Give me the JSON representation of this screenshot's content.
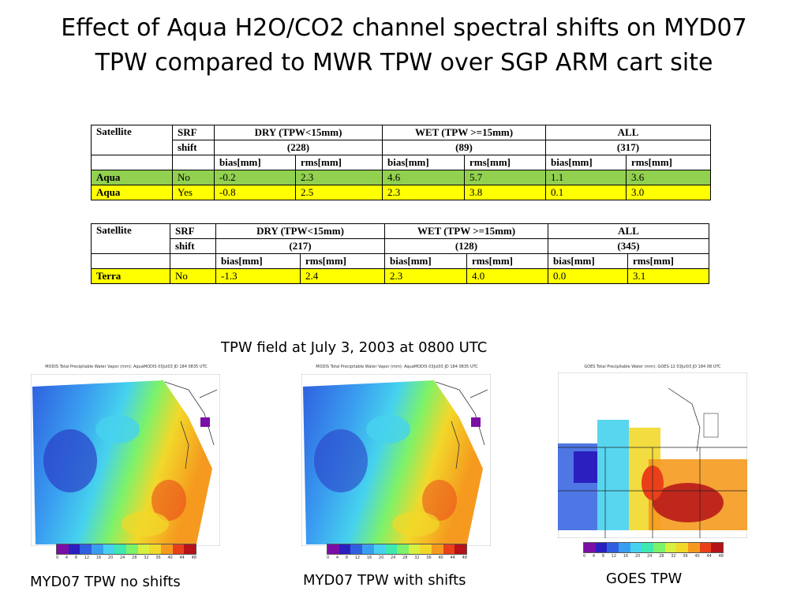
{
  "slide": {
    "title_line1": "Effect of Aqua H2O/CO2 channel spectral shifts on MYD07",
    "title_line2": "TPW compared to MWR TPW over SGP ARM cart site"
  },
  "table_aqua": {
    "h_satellite": "Satellite",
    "h_srf1": "SRF",
    "h_srf2": "shift",
    "h_dry": "DRY (TPW<15mm)",
    "h_dry_n": "(228)",
    "h_wet": "WET (TPW >=15mm)",
    "h_wet_n": "(89)",
    "h_all": "ALL",
    "h_all_n": "(317)",
    "sub_bias": "bias[mm]",
    "sub_rms": "rms[mm]",
    "rows": [
      {
        "sat": "Aqua",
        "srf": "No",
        "dry_bias": "-0.2",
        "dry_rms": "2.3",
        "wet_bias": "4.6",
        "wet_rms": "5.7",
        "all_bias": "1.1",
        "all_rms": "3.6"
      },
      {
        "sat": "Aqua",
        "srf": "Yes",
        "dry_bias": "-0.8",
        "dry_rms": "2.5",
        "wet_bias": "2.3",
        "wet_rms": "3.8",
        "all_bias": "0.1",
        "all_rms": "3.0"
      }
    ]
  },
  "table_terra": {
    "h_satellite": "Satellite",
    "h_srf1": "SRF",
    "h_srf2": "shift",
    "h_dry": "DRY (TPW<15mm)",
    "h_dry_n": "(217)",
    "h_wet": "WET (TPW >=15mm)",
    "h_wet_n": "(128)",
    "h_all": "ALL",
    "h_all_n": "(345)",
    "sub_bias": "bias[mm]",
    "sub_rms": "rms[mm]",
    "rows": [
      {
        "sat": "Terra",
        "srf": "No",
        "dry_bias": "-1.3",
        "dry_rms": "2.4",
        "wet_bias": "2.3",
        "wet_rms": "4.0",
        "all_bias": "0.0",
        "all_rms": "3.1"
      }
    ]
  },
  "figure": {
    "caption": "TPW field  at July 3, 2003 at 0800 UTC",
    "maps": [
      {
        "header": "MODIS Total Precipitable Water Vapor (mm): AquaMODIS  03Jul03 JD 184 0835 UTC",
        "caption": "MYD07 TPW no shifts"
      },
      {
        "header": "MODIS Total Precipitable Water Vapor (mm): AquaMODIS  03Jul03 JD 184 0835 UTC",
        "caption": "MYD07 TPW with shifts"
      },
      {
        "header": "GOES Total Precipitable Water (mm): GOES-12  03Jul03 JD 184 08 UTC",
        "caption": "GOES TPW"
      }
    ],
    "colorbar_ticks": [
      "0",
      "4",
      "8",
      "12",
      "16",
      "20",
      "24",
      "28",
      "32",
      "36",
      "40",
      "44",
      "48"
    ],
    "colorbar_colors": [
      "#7a0ea6",
      "#2a1fbf",
      "#2f5fe0",
      "#3a9ef0",
      "#46d2ee",
      "#3ee8b0",
      "#7cf26a",
      "#d8f040",
      "#f2d82a",
      "#f59a1e",
      "#e9401a",
      "#b5121a"
    ]
  }
}
